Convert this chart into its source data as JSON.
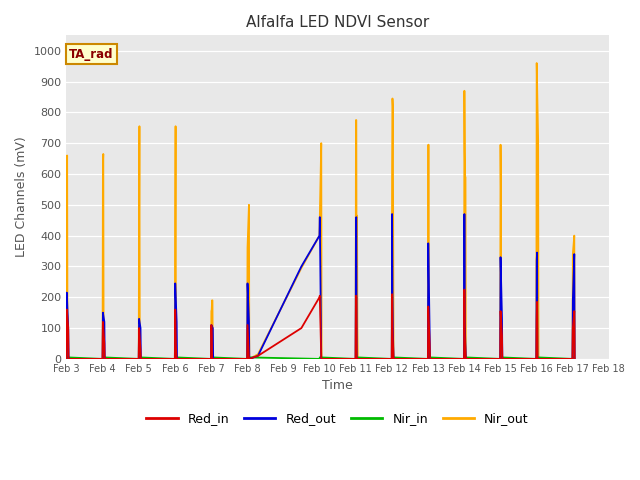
{
  "title": "Alfalfa LED NDVI Sensor",
  "xlabel": "Time",
  "ylabel": "LED Channels (mV)",
  "ylim": [
    0,
    1050
  ],
  "annotation_text": "TA_rad",
  "background_color": "#e8e8e8",
  "colors": {
    "Red_in": "#dd0000",
    "Red_out": "#0000dd",
    "Nir_in": "#00bb00",
    "Nir_out": "#ffaa00"
  },
  "x_ticks": [
    3,
    4,
    5,
    6,
    7,
    8,
    9,
    10,
    11,
    12,
    13,
    14,
    15,
    16,
    17,
    18
  ],
  "x_tick_labels": [
    "Feb 3",
    "Feb 4",
    "Feb 5",
    "Feb 6",
    "Feb 7",
    "Feb 8",
    "Feb 9",
    "Feb 10",
    "Feb 11",
    "Feb 12",
    "Feb 13",
    "Feb 14",
    "Feb 15",
    "Feb 16",
    "Feb 17",
    "Feb 18"
  ],
  "series": {
    "Red_in": {
      "x": [
        3.0,
        3.01,
        3.05,
        3.06,
        4.0,
        4.01,
        4.05,
        4.06,
        5.0,
        5.01,
        5.05,
        5.06,
        6.0,
        6.01,
        6.02,
        6.03,
        6.05,
        6.06,
        7.0,
        7.01,
        7.02,
        7.03,
        7.05,
        7.06,
        8.0,
        8.01,
        8.05,
        8.06,
        8.3,
        9.5,
        10.0,
        10.01,
        10.05,
        10.06,
        11.0,
        11.01,
        11.02,
        11.03,
        11.05,
        11.06,
        12.0,
        12.01,
        12.02,
        12.03,
        12.05,
        12.06,
        13.0,
        13.01,
        13.05,
        13.06,
        14.0,
        14.01,
        14.02,
        14.03,
        14.05,
        14.06,
        15.0,
        15.01,
        15.05,
        15.06,
        16.0,
        16.01,
        16.02,
        16.03,
        16.05,
        16.06,
        17.0,
        17.01,
        17.05,
        17.06
      ],
      "y": [
        0,
        160,
        100,
        0,
        0,
        120,
        50,
        0,
        0,
        100,
        30,
        0,
        0,
        160,
        100,
        40,
        0,
        0,
        0,
        110,
        70,
        0,
        0,
        0,
        0,
        110,
        0,
        0,
        10,
        100,
        200,
        205,
        0,
        0,
        0,
        205,
        200,
        0,
        0,
        0,
        0,
        210,
        105,
        65,
        0,
        0,
        0,
        170,
        50,
        0,
        0,
        225,
        80,
        50,
        0,
        0,
        0,
        155,
        75,
        0,
        0,
        130,
        185,
        0,
        0,
        0,
        0,
        100,
        155,
        0
      ]
    },
    "Red_out": {
      "x": [
        3.0,
        3.01,
        3.05,
        3.06,
        4.0,
        4.01,
        4.05,
        4.06,
        5.0,
        5.01,
        5.05,
        5.06,
        6.0,
        6.01,
        6.05,
        6.06,
        7.0,
        7.01,
        7.05,
        7.06,
        8.0,
        8.01,
        8.05,
        8.06,
        8.3,
        9.5,
        10.0,
        10.01,
        10.05,
        10.06,
        11.0,
        11.01,
        11.02,
        11.03,
        11.05,
        11.06,
        12.0,
        12.01,
        12.02,
        12.03,
        12.05,
        12.06,
        13.0,
        13.01,
        13.05,
        13.06,
        14.0,
        14.01,
        14.02,
        14.03,
        14.05,
        14.06,
        15.0,
        15.01,
        15.05,
        15.06,
        16.0,
        16.01,
        16.02,
        16.03,
        16.05,
        16.06,
        17.0,
        17.01,
        17.05,
        17.06
      ],
      "y": [
        0,
        215,
        100,
        0,
        0,
        150,
        120,
        0,
        0,
        130,
        100,
        0,
        0,
        245,
        120,
        0,
        0,
        110,
        100,
        0,
        0,
        245,
        120,
        0,
        10,
        300,
        400,
        460,
        0,
        0,
        0,
        455,
        460,
        0,
        0,
        0,
        0,
        470,
        220,
        100,
        0,
        0,
        0,
        375,
        75,
        0,
        0,
        470,
        130,
        75,
        0,
        0,
        0,
        330,
        130,
        0,
        0,
        320,
        345,
        0,
        0,
        0,
        0,
        190,
        340,
        0
      ]
    },
    "Nir_in": {
      "x": [
        3.0,
        3.01,
        4.0,
        4.01,
        5.0,
        5.01,
        6.0,
        6.01,
        7.0,
        7.01,
        8.0,
        8.01,
        10.0,
        10.01,
        11.0,
        11.01,
        12.0,
        12.01,
        13.0,
        13.01,
        14.0,
        14.01,
        15.0,
        15.01,
        16.0,
        16.01,
        17.0,
        17.01
      ],
      "y": [
        0,
        5,
        0,
        5,
        0,
        5,
        0,
        5,
        0,
        5,
        0,
        5,
        0,
        5,
        0,
        5,
        0,
        5,
        0,
        5,
        0,
        5,
        0,
        5,
        0,
        5,
        0,
        5
      ]
    },
    "Nir_out": {
      "x": [
        3.0,
        3.01,
        3.02,
        3.03,
        3.05,
        3.06,
        4.0,
        4.01,
        4.02,
        4.03,
        4.05,
        4.06,
        5.0,
        5.01,
        5.02,
        5.03,
        5.05,
        5.06,
        6.0,
        6.01,
        6.02,
        6.03,
        6.05,
        6.06,
        7.0,
        7.01,
        7.02,
        7.03,
        7.04,
        7.05,
        7.06,
        7.07,
        8.0,
        8.01,
        8.05,
        8.06,
        8.3,
        9.5,
        10.0,
        10.01,
        10.05,
        10.06,
        11.0,
        11.01,
        11.02,
        11.03,
        11.04,
        11.05,
        11.06,
        11.07,
        12.0,
        12.01,
        12.02,
        12.03,
        12.05,
        12.06,
        13.0,
        13.01,
        13.02,
        13.03,
        13.05,
        13.06,
        14.0,
        14.01,
        14.02,
        14.03,
        14.04,
        14.05,
        14.06,
        14.07,
        15.0,
        15.01,
        15.02,
        15.03,
        15.05,
        15.06,
        16.0,
        16.01,
        16.05,
        16.06,
        17.0,
        17.01,
        17.05,
        17.06
      ],
      "y": [
        0,
        540,
        660,
        0,
        0,
        0,
        0,
        635,
        665,
        0,
        0,
        0,
        0,
        450,
        755,
        0,
        0,
        0,
        0,
        450,
        755,
        0,
        0,
        0,
        0,
        155,
        160,
        190,
        190,
        0,
        0,
        0,
        0,
        360,
        500,
        0,
        15,
        295,
        400,
        460,
        700,
        0,
        0,
        775,
        775,
        0,
        465,
        100,
        0,
        0,
        0,
        625,
        845,
        820,
        0,
        0,
        0,
        695,
        695,
        0,
        0,
        0,
        0,
        870,
        675,
        590,
        590,
        0,
        0,
        0,
        0,
        695,
        555,
        0,
        0,
        0,
        0,
        960,
        710,
        0,
        0,
        340,
        400,
        0
      ]
    }
  }
}
